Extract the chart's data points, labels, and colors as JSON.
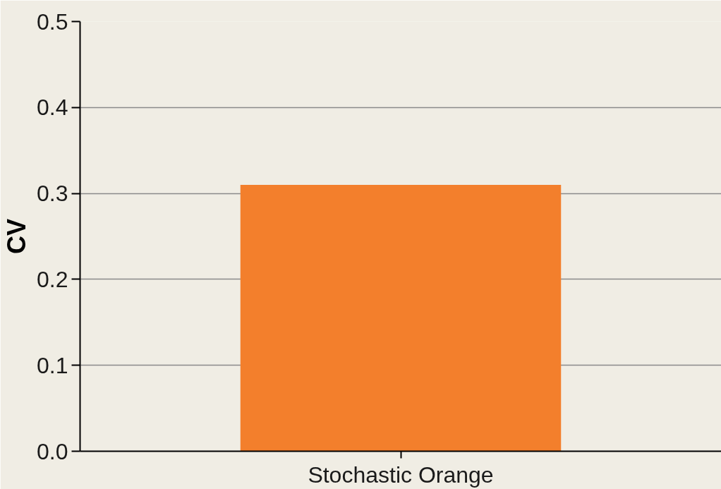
{
  "chart_data": {
    "type": "bar",
    "ylabel": "CV",
    "categories": [
      "Stochastic Orange"
    ],
    "values": [
      0.31
    ],
    "color": "#f37f2c",
    "ylim": [
      0,
      0.5
    ],
    "yticks": [
      {
        "value": 0,
        "label": "0.0"
      },
      {
        "value": 0.1,
        "label": "0.1"
      },
      {
        "value": 0.2,
        "label": "0.2"
      },
      {
        "value": 0.3,
        "label": "0.3"
      },
      {
        "value": 0.4,
        "label": "0.4"
      },
      {
        "value": 0.5,
        "label": "0.5"
      }
    ],
    "grid": "y"
  }
}
